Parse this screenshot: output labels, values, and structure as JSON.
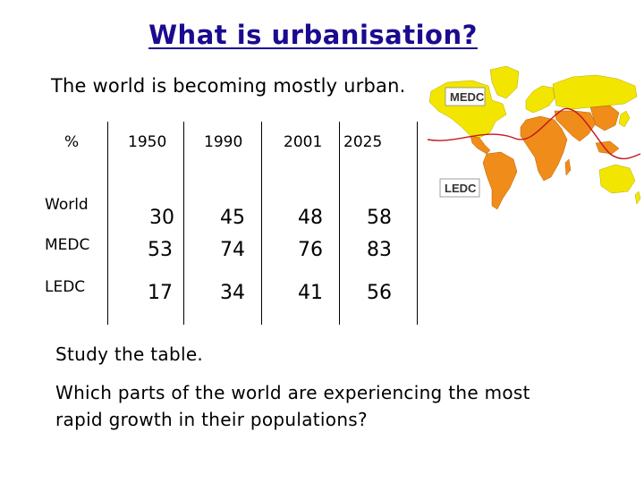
{
  "slide": {
    "title": "What is urbanisation?",
    "subtitle": "The world is becoming mostly urban.",
    "instruction": "Study the table.",
    "question_line1": "Which parts of the world are experiencing the most",
    "question_line2": "rapid growth in their populations?"
  },
  "table": {
    "corner_label": "%",
    "years": [
      "1950",
      "1990",
      "2001",
      "2025"
    ],
    "rows": [
      {
        "label": "World",
        "values": [
          "30",
          "45",
          "48",
          "58"
        ]
      },
      {
        "label": "MEDC",
        "values": [
          "53",
          "74",
          "76",
          "83"
        ]
      },
      {
        "label": "LEDC",
        "values": [
          "17",
          "34",
          "41",
          "56"
        ]
      }
    ]
  },
  "map": {
    "medc_label": "MEDC",
    "ledc_label": "LEDC",
    "colors": {
      "medc": "#f2e600",
      "ledc": "#f08c1a",
      "divide_line": "#c4161c",
      "ocean": "#ffffff"
    }
  },
  "colors": {
    "title": "#1a0b8f"
  }
}
